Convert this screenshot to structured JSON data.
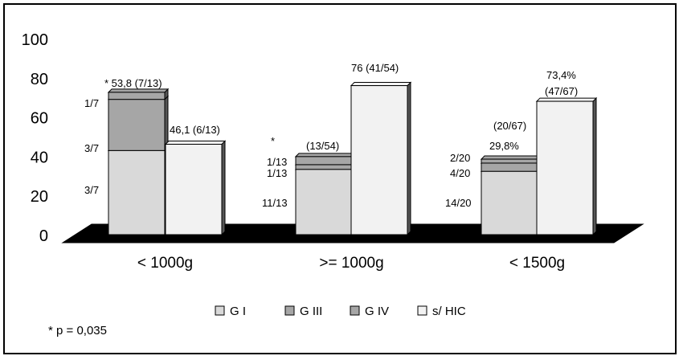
{
  "chart_data": {
    "type": "bar",
    "categories": [
      "< 1000g",
      ">= 1000g",
      "< 1500g"
    ],
    "y_ticks": [
      "0",
      "20",
      "40",
      "60",
      "80",
      "100"
    ],
    "ylim": [
      0,
      100
    ],
    "stacked_series": [
      {
        "name": "G I",
        "color": "#d9d9d9",
        "values": [
          42.9,
          33.3,
          32.3
        ]
      },
      {
        "name": "G III",
        "color": "#a6a6a6",
        "values": [
          26.1,
          2.4,
          4.2
        ]
      },
      {
        "name": "G IV",
        "color": "#a6a6a6",
        "values": [
          3.6,
          4.1,
          2.0
        ]
      }
    ],
    "series_shic": {
      "name": "s/ HIC",
      "color": "#f2f2f2",
      "values": [
        46.1,
        76,
        68
      ]
    },
    "labels": [
      {
        "cat": 0,
        "text": "* 53,8 (7/13)"
      },
      {
        "cat": 0,
        "text": "1/7"
      },
      {
        "cat": 0,
        "text": "3/7"
      },
      {
        "cat": 0,
        "text": "3/7"
      },
      {
        "cat": 0,
        "text": "46,1 (6/13)"
      },
      {
        "cat": 1,
        "text": "*"
      },
      {
        "cat": 1,
        "text": "(13/54)"
      },
      {
        "cat": 1,
        "text": "1/13"
      },
      {
        "cat": 1,
        "text": "1/13"
      },
      {
        "cat": 1,
        "text": "11/13"
      },
      {
        "cat": 1,
        "text": "76 (41/54)"
      },
      {
        "cat": 2,
        "text": "73,4%"
      },
      {
        "cat": 2,
        "text": "(47/67)"
      },
      {
        "cat": 2,
        "text": "(20/67)"
      },
      {
        "cat": 2,
        "text": "29,8%"
      },
      {
        "cat": 2,
        "text": "2/20"
      },
      {
        "cat": 2,
        "text": "4/20"
      },
      {
        "cat": 2,
        "text": "14/20"
      }
    ],
    "legend": [
      {
        "name": "G I",
        "color": "#d9d9d9"
      },
      {
        "name": "G III",
        "color": "#a6a6a6"
      },
      {
        "name": "G IV",
        "color": "#a6a6a6"
      },
      {
        "name": "s/ HIC",
        "color": "#f2f2f2"
      }
    ],
    "legend_position": "bottom",
    "grid": false
  },
  "footnote": "* p = 0,035"
}
